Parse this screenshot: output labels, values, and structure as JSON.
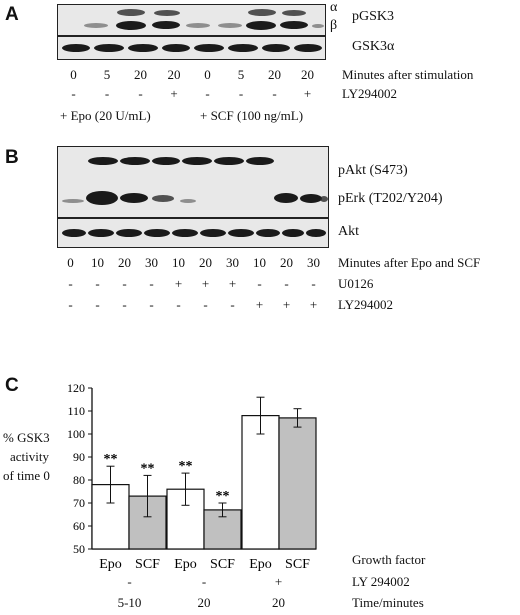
{
  "panelA": {
    "letter": "A",
    "band_alpha": "α",
    "band_beta": "β",
    "label_pgsk3": "pGSK3",
    "label_gsk3a": "GSK3α",
    "minutes": [
      "0",
      "5",
      "20",
      "20",
      "0",
      "5",
      "20",
      "20"
    ],
    "minutes_label": "Minutes after stimulation",
    "ly": [
      "-",
      "-",
      "-",
      "+",
      "-",
      "-",
      "-",
      "+"
    ],
    "ly_label": "LY294002",
    "epo_label": "+ Epo (20 U/mL)",
    "scf_label": "+ SCF (100 ng/mL)"
  },
  "panelB": {
    "letter": "B",
    "label_pakt": "pAkt (S473)",
    "label_perk": "pErk (T202/Y204)",
    "label_akt": "Akt",
    "minutes": [
      "0",
      "10",
      "20",
      "30",
      "10",
      "20",
      "30",
      "10",
      "20",
      "30"
    ],
    "minutes_label": "Minutes after Epo and SCF",
    "u0126": [
      "-",
      "-",
      "-",
      "-",
      "+",
      "+",
      "+",
      "-",
      "-",
      "-"
    ],
    "u0126_label": "U0126",
    "ly": [
      "-",
      "-",
      "-",
      "-",
      "-",
      "-",
      "-",
      "+",
      "+",
      "+"
    ],
    "ly_label": "LY294002"
  },
  "panelC": {
    "letter": "C",
    "ylabel_line1": "% GSK3",
    "ylabel_line2": "activity",
    "ylabel_line3": "of time 0",
    "growth_factor_label": "Growth factor",
    "ly_label": "LY 294002",
    "time_label": "Time/minutes",
    "ly_signs": [
      "-",
      "-",
      "+"
    ],
    "times": [
      "5-10",
      "20",
      "20"
    ]
  },
  "chart_data": {
    "type": "bar",
    "categories": [
      "Epo",
      "SCF",
      "Epo",
      "SCF",
      "Epo",
      "SCF"
    ],
    "values": [
      78,
      73,
      76,
      67,
      108,
      107
    ],
    "errors": [
      8,
      9,
      7,
      3,
      8,
      4
    ],
    "significance": [
      "**",
      "**",
      "**",
      "**",
      "",
      ""
    ],
    "bar_colors": [
      "#ffffff",
      "#c0c0c0",
      "#ffffff",
      "#c0c0c0",
      "#ffffff",
      "#c0c0c0"
    ],
    "ylim": [
      50,
      120
    ],
    "yticks": [
      "50",
      "60",
      "70",
      "80",
      "90",
      "100",
      "110",
      "120"
    ],
    "ylabel": "% GSK3 activity of time 0",
    "xlabel": "Growth factor"
  }
}
